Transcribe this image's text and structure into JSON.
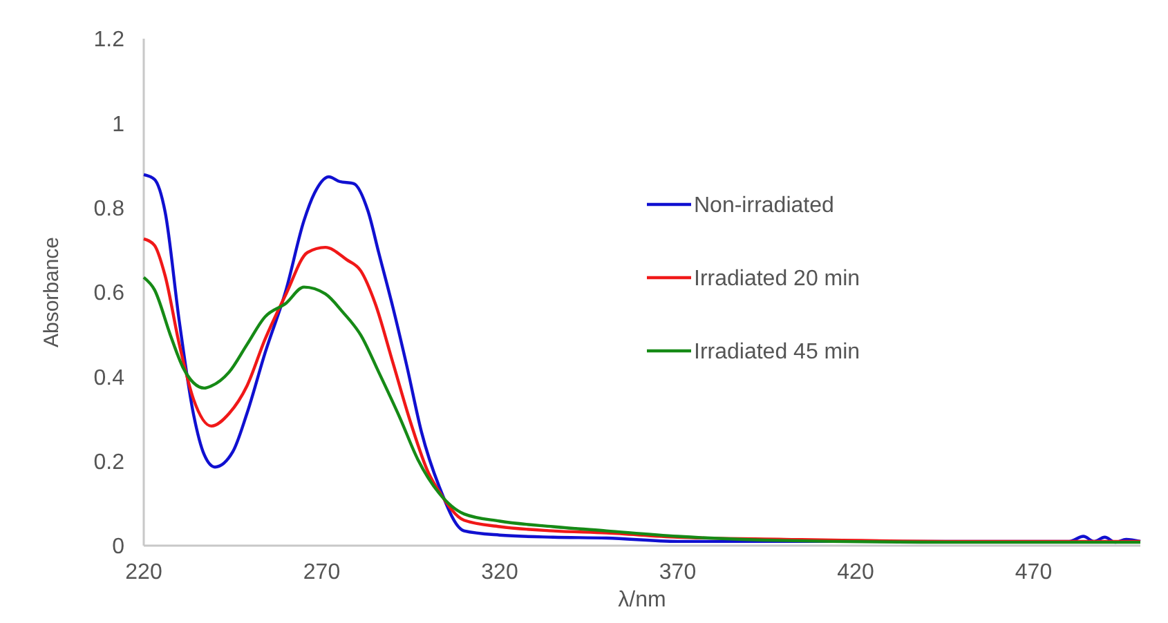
{
  "chart_data": {
    "type": "line",
    "xlabel": "λ/nm",
    "ylabel": "Absorbance",
    "xlim": [
      220,
      500
    ],
    "xticks": [
      220,
      270,
      320,
      370,
      420,
      470
    ],
    "ylim": [
      0,
      1.2
    ],
    "yticks": [
      0,
      0.2,
      0.4,
      0.6,
      0.8,
      1,
      1.2
    ],
    "grid": false,
    "legend": "right",
    "line_style": "solid",
    "series": [
      {
        "name": "Non-irradiated",
        "color": "#1010d0",
        "x": [
          220,
          223,
          226,
          230,
          234,
          237,
          240,
          245,
          249,
          254,
          260,
          265,
          268,
          272,
          275,
          279,
          283,
          286,
          290,
          294,
          298,
          303,
          310,
          320,
          335,
          350,
          370,
          400,
          450,
          480,
          484,
          487,
          490,
          493,
          496,
          500
        ],
        "values": [
          0.878,
          0.867,
          0.79,
          0.53,
          0.31,
          0.215,
          0.186,
          0.222,
          0.313,
          0.454,
          0.606,
          0.769,
          0.835,
          0.873,
          0.862,
          0.857,
          0.792,
          0.694,
          0.564,
          0.422,
          0.27,
          0.14,
          0.035,
          0.025,
          0.02,
          0.018,
          0.01,
          0.01,
          0.01,
          0.01,
          0.022,
          0.01,
          0.02,
          0.008,
          0.015,
          0.01
        ]
      },
      {
        "name": "Irradiated 20 min",
        "color": "#f01818",
        "x": [
          220,
          223,
          226,
          230,
          234,
          239,
          244,
          249,
          254,
          260,
          266,
          271,
          277,
          281,
          285,
          290,
          295,
          300,
          303,
          310,
          320,
          335,
          350,
          370,
          400,
          450,
          500
        ],
        "values": [
          0.726,
          0.711,
          0.639,
          0.476,
          0.346,
          0.283,
          0.313,
          0.378,
          0.487,
          0.596,
          0.694,
          0.706,
          0.677,
          0.65,
          0.574,
          0.433,
          0.291,
          0.172,
          0.128,
          0.06,
          0.045,
          0.035,
          0.03,
          0.02,
          0.015,
          0.01,
          0.01
        ]
      },
      {
        "name": "Irradiated 45 min",
        "color": "#168a16",
        "x": [
          220,
          223,
          227.5,
          231,
          237,
          239,
          244,
          249,
          254,
          260,
          265,
          271,
          276,
          281,
          286,
          292,
          297,
          303,
          310,
          320,
          335,
          350,
          370,
          400,
          450,
          500
        ],
        "values": [
          0.635,
          0.606,
          0.498,
          0.422,
          0.373,
          0.378,
          0.411,
          0.476,
          0.541,
          0.574,
          0.612,
          0.596,
          0.552,
          0.498,
          0.411,
          0.302,
          0.204,
          0.124,
          0.075,
          0.058,
          0.045,
          0.035,
          0.022,
          0.012,
          0.008,
          0.008
        ]
      }
    ]
  }
}
